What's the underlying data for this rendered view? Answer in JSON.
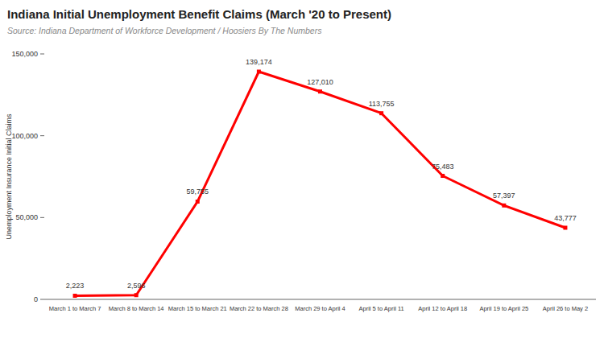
{
  "chart_data": {
    "type": "line",
    "title": "Indiana Initial Unemployment Benefit Claims (March '20 to Present)",
    "subtitle": "Source: Indiana Department of Workforce Development / Hoosiers By The Numbers",
    "y_label": "Unemployment Insurance Initial Claims",
    "categories": [
      "March 1 to March 7",
      "March 8 to March 14",
      "March 15 to March 21",
      "March 22 to March 28",
      "March 29 to April 4",
      "April 5 to April 11",
      "April 12 to April 18",
      "April 19 to April 25",
      "April 26 to May 2"
    ],
    "values": [
      2223,
      2596,
      59755,
      139174,
      127010,
      113755,
      75483,
      57397,
      43777
    ],
    "value_labels": [
      "2,223",
      "2,596",
      "59,755",
      "139,174",
      "127,010",
      "113,755",
      "75,483",
      "57,397",
      "43,777"
    ],
    "color": "#ff0000",
    "marker": "square",
    "line_style": "solid",
    "data_labels": true,
    "grid": false,
    "ylim": [
      0,
      150000
    ],
    "yticks": [
      0,
      {
        "value": 50000,
        "label": "50,000"
      },
      {
        "value": 100000,
        "label": "100,000"
      },
      {
        "value": 150000,
        "label": "150,000"
      }
    ]
  }
}
